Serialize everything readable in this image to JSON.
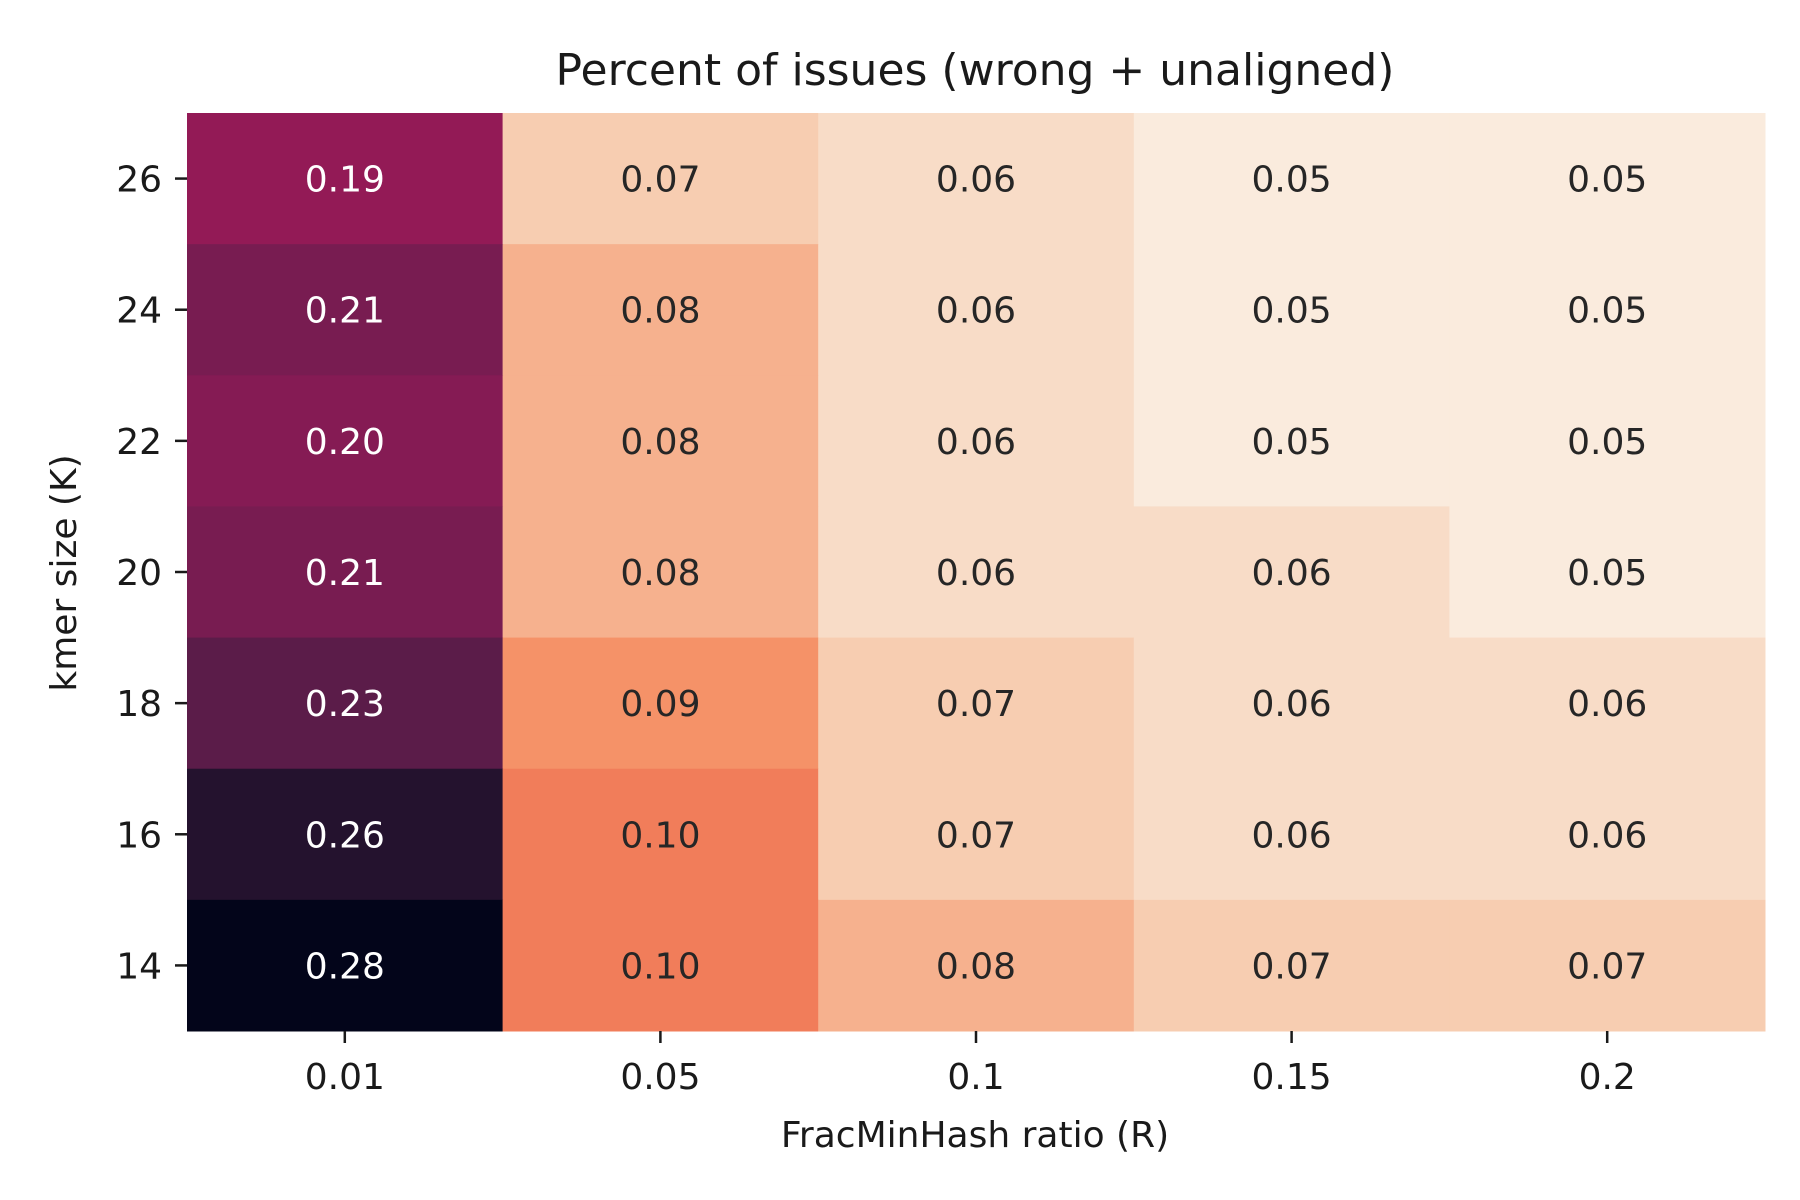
{
  "chart_data": {
    "type": "heatmap",
    "title": "Percent of issues (wrong + unaligned)",
    "xlabel": "FracMinHash ratio (R)",
    "ylabel": "kmer size (K)",
    "x_categories": [
      "0.01",
      "0.05",
      "0.1",
      "0.15",
      "0.2"
    ],
    "y_categories": [
      "26",
      "24",
      "22",
      "20",
      "18",
      "16",
      "14"
    ],
    "values": [
      [
        0.19,
        0.07,
        0.06,
        0.05,
        0.05
      ],
      [
        0.21,
        0.08,
        0.06,
        0.05,
        0.05
      ],
      [
        0.2,
        0.08,
        0.06,
        0.05,
        0.05
      ],
      [
        0.21,
        0.08,
        0.06,
        0.06,
        0.05
      ],
      [
        0.23,
        0.09,
        0.07,
        0.06,
        0.06
      ],
      [
        0.26,
        0.1,
        0.07,
        0.06,
        0.06
      ],
      [
        0.28,
        0.1,
        0.08,
        0.07,
        0.07
      ]
    ],
    "colormap": "rocket_r",
    "annotations": true,
    "colorbar": false
  }
}
